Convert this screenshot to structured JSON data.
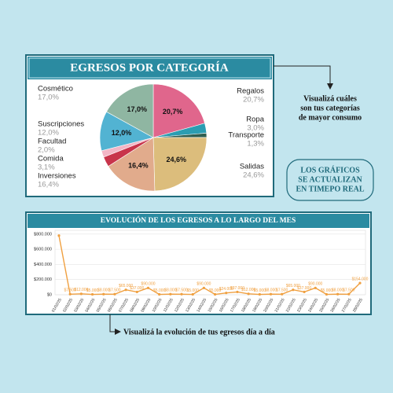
{
  "chart_data": [
    {
      "type": "pie",
      "title": "EGRESOS POR CATEGORÍA",
      "categories": [
        "Regalos",
        "Ropa",
        "Transporte",
        "Salidas",
        "Inversiones",
        "Comida",
        "Facultad",
        "Suscripciones",
        "Cosmético"
      ],
      "values": [
        20.7,
        3.0,
        1.3,
        24.6,
        16.4,
        3.1,
        2.0,
        12.0,
        17.0
      ],
      "value_labels": [
        "20,7%",
        "3,0%",
        "1,3%",
        "24,6%",
        "16,4%",
        "3,1%",
        "2,0%",
        "12,0%",
        "17,0%"
      ],
      "colors": [
        "#e0668c",
        "#2b9db2",
        "#2f5e50",
        "#dcbd7c",
        "#e1ab8c",
        "#c8344b",
        "#f3b6c6",
        "#52b3d2",
        "#8fb6a2"
      ]
    },
    {
      "type": "line",
      "title": "EVOLUCIÓN DE LOS EGRESOS A LO LARGO DEL MES",
      "x": [
        "01/02/25",
        "02/02/25",
        "03/02/25",
        "04/02/25",
        "05/02/25",
        "06/02/25",
        "07/02/25",
        "08/02/25",
        "09/02/25",
        "10/02/25",
        "11/02/25",
        "12/02/25",
        "13/02/25",
        "14/02/25",
        "15/02/25",
        "16/02/25",
        "17/02/25",
        "18/02/25",
        "19/02/25",
        "20/02/25",
        "21/02/25",
        "22/02/25",
        "23/02/25",
        "24/02/25",
        "25/02/25",
        "26/02/25",
        "27/02/25",
        "28/02/25"
      ],
      "values": [
        780000,
        7500,
        12000,
        5000,
        8000,
        7500,
        65000,
        37000,
        90000,
        5000,
        8000,
        7500,
        5000,
        90000,
        5000,
        24000,
        37000,
        12000,
        5000,
        8000,
        7500,
        65000,
        37000,
        90000,
        5000,
        8000,
        7500,
        154000
      ],
      "value_labels": [
        null,
        "$7.500",
        "$12.000",
        "$5.000",
        "$8.000",
        "$7.500",
        "$65.000",
        "$37.000",
        "$90.000",
        "$5.000",
        "$8.000",
        "$7.500",
        "$5.000",
        "$90.000",
        "$5.000",
        "$24.000",
        "$37.000",
        "$12.000",
        "$5.000",
        "$8.000",
        "$7.500",
        "$65.000",
        "$37.000",
        "$90.000",
        "$5.000",
        "$8.000",
        "$7.500",
        "$154.000"
      ],
      "color": "#f0a040",
      "ylim": [
        0,
        850000
      ],
      "yticks": [
        {
          "value": 0,
          "label": "$0"
        },
        {
          "value": 200000,
          "label": "$200.000"
        },
        {
          "value": 400000,
          "label": "$400.000"
        },
        {
          "value": 600000,
          "label": "$600.000"
        },
        {
          "value": 800000,
          "label": "$800.000"
        }
      ],
      "grid": true
    }
  ],
  "notes": {
    "pie_note": [
      "Visualizá cuáles",
      "son tus categorías",
      "de mayor consumo"
    ],
    "badge": [
      "LOS GRÁFICOS",
      "SE ACTUALIZAN",
      "EN TIMEPO REAL"
    ],
    "line_note": "Visualizá la evolución de tus egresos día a día"
  }
}
